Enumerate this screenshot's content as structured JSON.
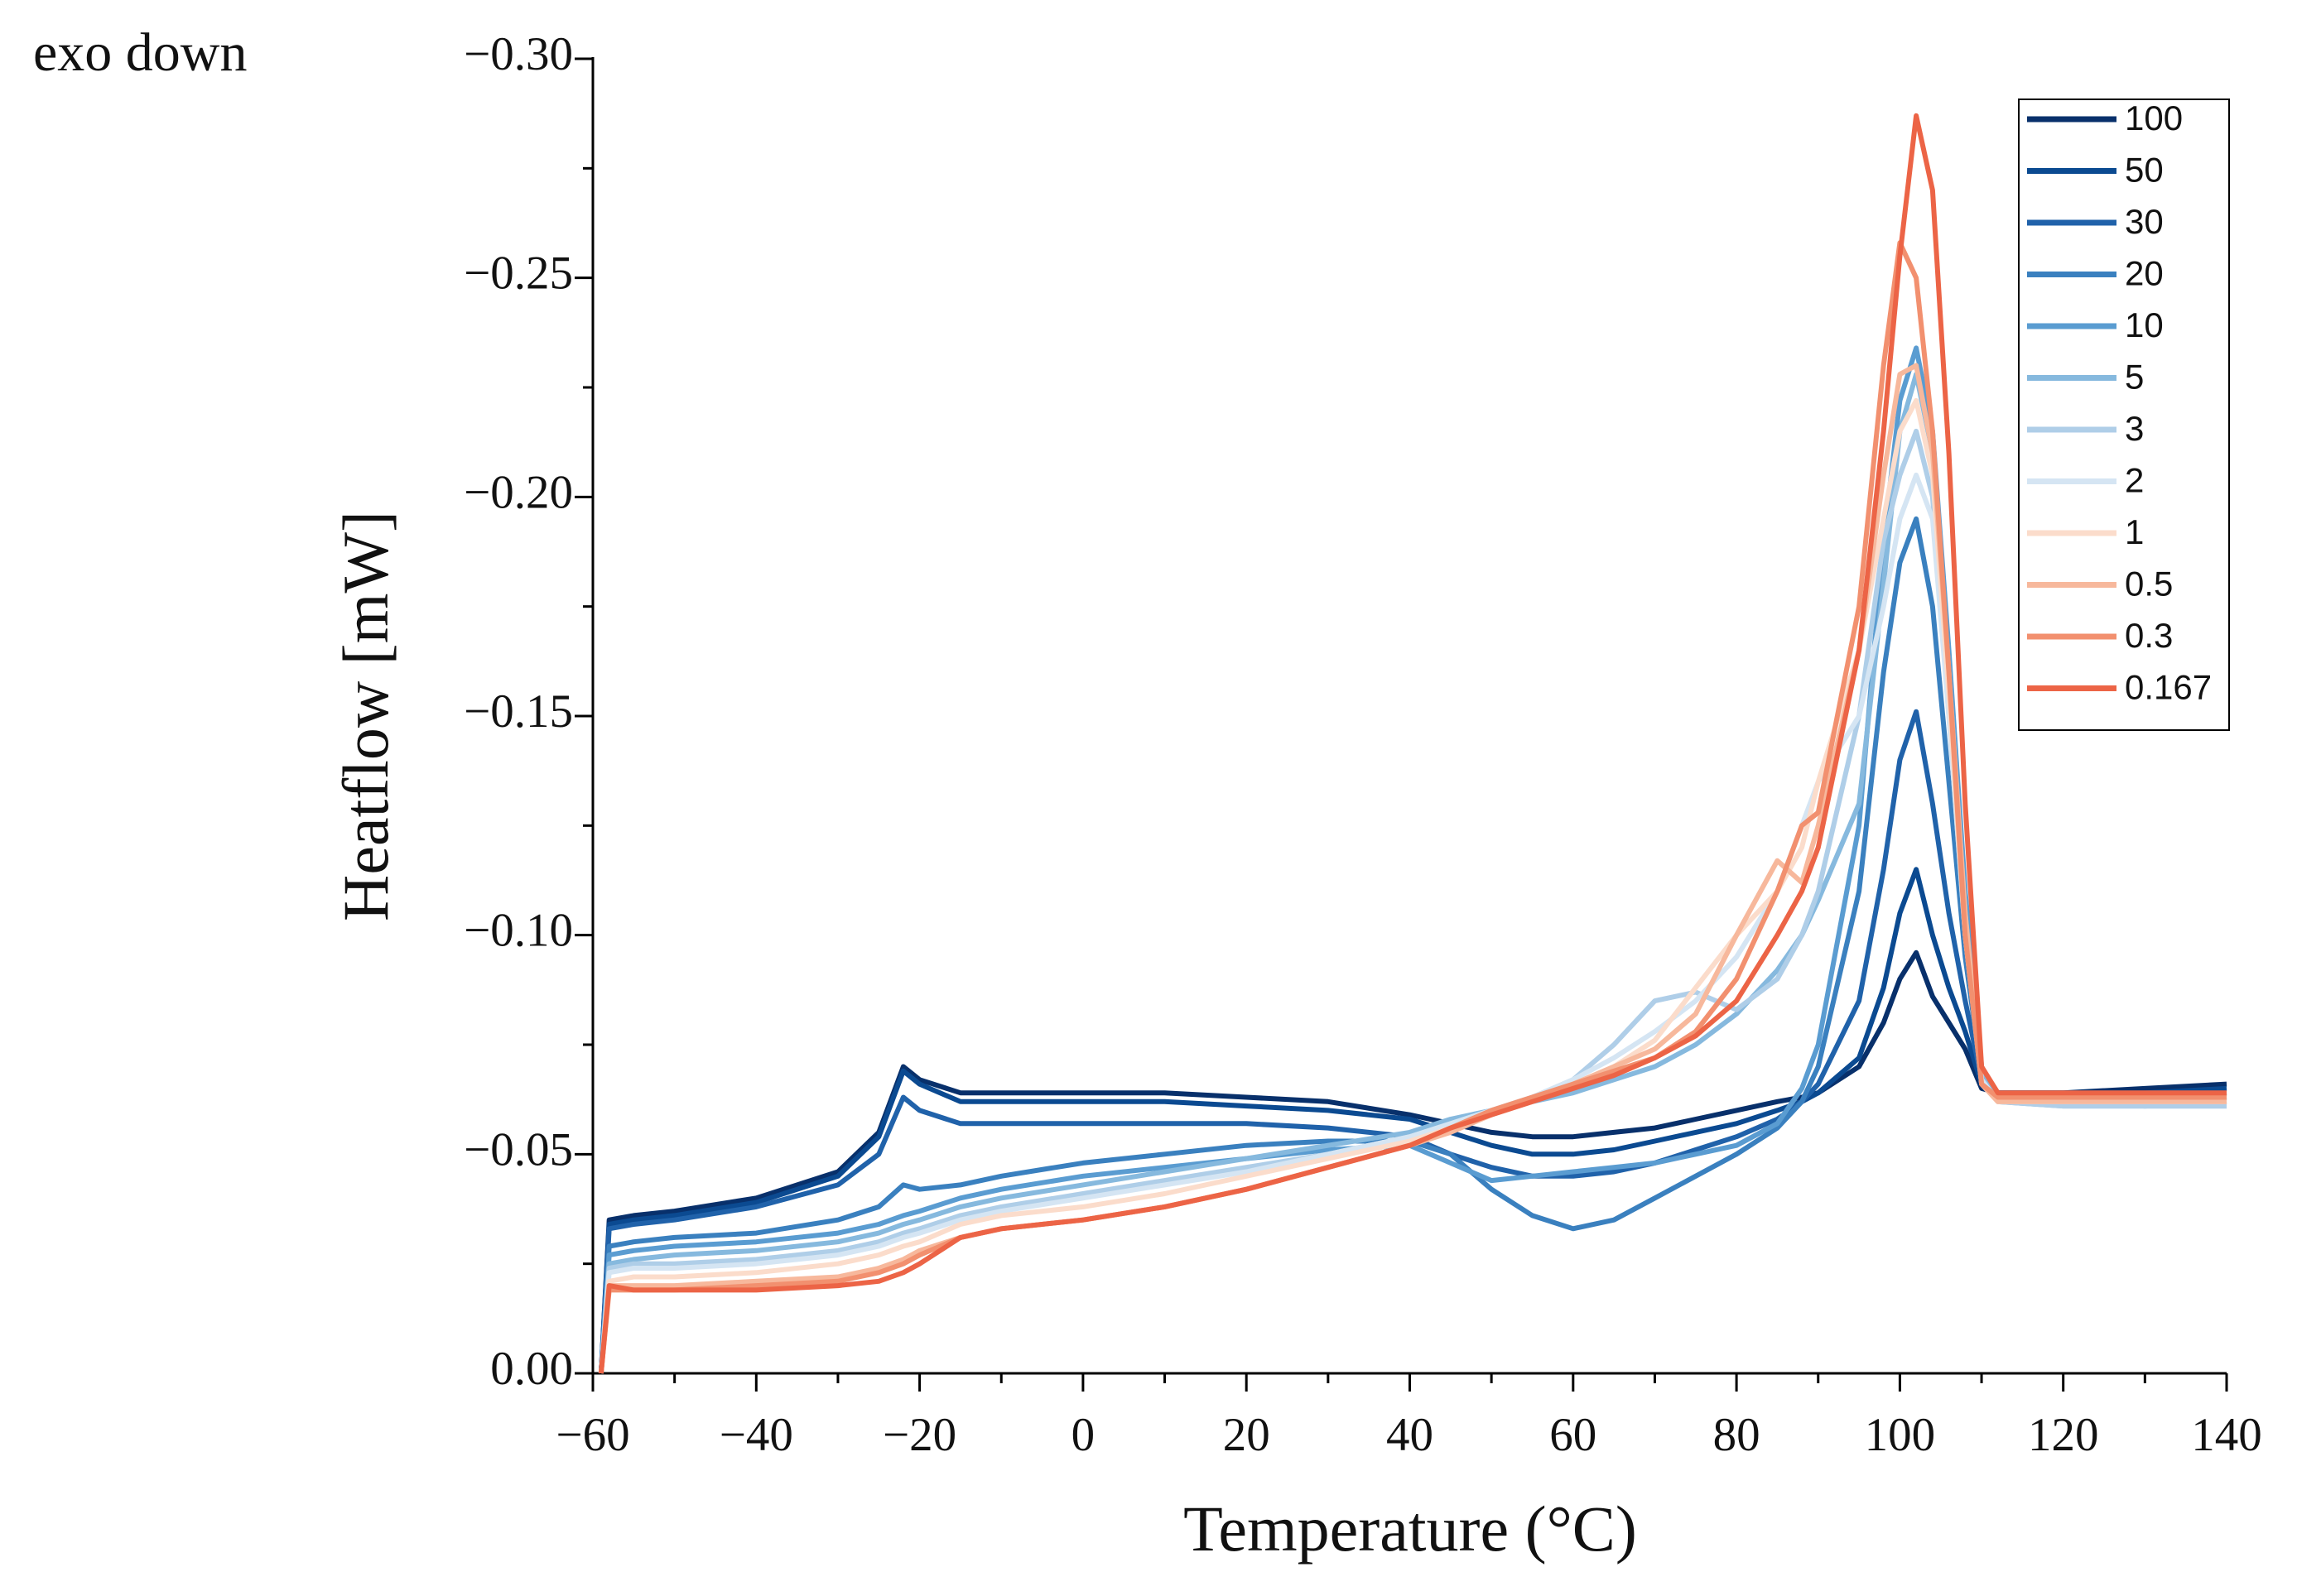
{
  "chart_data": {
    "type": "line",
    "annotation": "exo down",
    "xlabel": "Temperature (°C)",
    "ylabel": "Heatflow [mW]",
    "xlim": [
      -60,
      140
    ],
    "xticks": [
      {
        "value": -60,
        "label": "−60"
      },
      {
        "value": -40,
        "label": "−40"
      },
      {
        "value": -20,
        "label": "−20"
      },
      0,
      20,
      40,
      60,
      80,
      100,
      120,
      140
    ],
    "ylim": [
      0,
      -0.3
    ],
    "yticks": [
      {
        "value": 0,
        "label": "0.00"
      },
      {
        "value": -0.05,
        "label": "−0.05"
      },
      {
        "value": -0.1,
        "label": "−0.10"
      },
      {
        "value": -0.15,
        "label": "−0.15"
      },
      {
        "value": -0.2,
        "label": "−0.20"
      },
      {
        "value": -0.25,
        "label": "−0.25"
      },
      {
        "value": -0.3,
        "label": "−0.30"
      }
    ],
    "legend": "upper right",
    "x": [
      -59,
      -58,
      -55,
      -50,
      -40,
      -30,
      -25,
      -22,
      -20,
      -15,
      -10,
      0,
      10,
      20,
      30,
      40,
      45,
      50,
      55,
      60,
      65,
      70,
      75,
      80,
      85,
      88,
      90,
      95,
      98,
      100,
      102,
      104,
      106,
      108,
      110,
      112,
      120,
      130,
      140
    ],
    "series": [
      {
        "name": "100",
        "color": "#08306b",
        "values": [
          0,
          -0.035,
          -0.036,
          -0.037,
          -0.04,
          -0.046,
          -0.055,
          -0.07,
          -0.067,
          -0.064,
          -0.064,
          -0.064,
          -0.064,
          -0.063,
          -0.062,
          -0.059,
          -0.057,
          -0.055,
          -0.054,
          -0.054,
          -0.055,
          -0.056,
          -0.058,
          -0.06,
          -0.062,
          -0.063,
          -0.064,
          -0.07,
          -0.08,
          -0.09,
          -0.096,
          -0.086,
          -0.08,
          -0.074,
          -0.065,
          -0.064,
          -0.064,
          -0.065,
          -0.066
        ]
      },
      {
        "name": "50",
        "color": "#0b4a91",
        "values": [
          0,
          -0.034,
          -0.035,
          -0.036,
          -0.039,
          -0.045,
          -0.054,
          -0.069,
          -0.066,
          -0.062,
          -0.062,
          -0.062,
          -0.062,
          -0.061,
          -0.06,
          -0.058,
          -0.055,
          -0.052,
          -0.05,
          -0.05,
          -0.051,
          -0.053,
          -0.055,
          -0.057,
          -0.06,
          -0.062,
          -0.064,
          -0.072,
          -0.088,
          -0.105,
          -0.115,
          -0.1,
          -0.088,
          -0.078,
          -0.066,
          -0.064,
          -0.064,
          -0.064,
          -0.065
        ]
      },
      {
        "name": "30",
        "color": "#2062aa",
        "values": [
          0,
          -0.033,
          -0.034,
          -0.035,
          -0.038,
          -0.043,
          -0.05,
          -0.063,
          -0.06,
          -0.057,
          -0.057,
          -0.057,
          -0.057,
          -0.057,
          -0.056,
          -0.054,
          -0.05,
          -0.047,
          -0.045,
          -0.045,
          -0.046,
          -0.048,
          -0.051,
          -0.054,
          -0.058,
          -0.062,
          -0.066,
          -0.085,
          -0.115,
          -0.14,
          -0.151,
          -0.13,
          -0.105,
          -0.085,
          -0.067,
          -0.064,
          -0.063,
          -0.063,
          -0.064
        ]
      },
      {
        "name": "20",
        "color": "#3a80bf",
        "values": [
          0,
          -0.029,
          -0.03,
          -0.031,
          -0.032,
          -0.035,
          -0.038,
          -0.043,
          -0.042,
          -0.043,
          -0.045,
          -0.048,
          -0.05,
          -0.052,
          -0.053,
          -0.053,
          -0.05,
          -0.042,
          -0.036,
          -0.033,
          -0.035,
          -0.04,
          -0.045,
          -0.05,
          -0.056,
          -0.062,
          -0.07,
          -0.11,
          -0.16,
          -0.185,
          -0.195,
          -0.175,
          -0.135,
          -0.095,
          -0.068,
          -0.063,
          -0.062,
          -0.062,
          -0.063
        ]
      },
      {
        "name": "10",
        "color": "#5a9cd1",
        "values": [
          0,
          -0.027,
          -0.028,
          -0.029,
          -0.03,
          -0.032,
          -0.034,
          -0.036,
          -0.037,
          -0.04,
          -0.042,
          -0.045,
          -0.047,
          -0.049,
          -0.051,
          -0.052,
          -0.048,
          -0.044,
          -0.045,
          -0.046,
          -0.047,
          -0.048,
          -0.05,
          -0.052,
          -0.057,
          -0.065,
          -0.075,
          -0.125,
          -0.19,
          -0.222,
          -0.234,
          -0.215,
          -0.165,
          -0.11,
          -0.07,
          -0.063,
          -0.062,
          -0.061,
          -0.062
        ]
      },
      {
        "name": "5",
        "color": "#86b9de",
        "values": [
          0,
          -0.025,
          -0.026,
          -0.027,
          -0.028,
          -0.03,
          -0.032,
          -0.034,
          -0.035,
          -0.038,
          -0.04,
          -0.043,
          -0.046,
          -0.049,
          -0.052,
          -0.055,
          -0.058,
          -0.06,
          -0.062,
          -0.064,
          -0.067,
          -0.07,
          -0.075,
          -0.082,
          -0.092,
          -0.1,
          -0.108,
          -0.13,
          -0.18,
          -0.215,
          -0.228,
          -0.21,
          -0.16,
          -0.105,
          -0.068,
          -0.062,
          -0.061,
          -0.061,
          -0.061
        ]
      },
      {
        "name": "3",
        "color": "#afcee8",
        "values": [
          0,
          -0.024,
          -0.025,
          -0.025,
          -0.026,
          -0.028,
          -0.03,
          -0.032,
          -0.033,
          -0.036,
          -0.038,
          -0.041,
          -0.044,
          -0.047,
          -0.05,
          -0.054,
          -0.057,
          -0.06,
          -0.063,
          -0.067,
          -0.075,
          -0.085,
          -0.087,
          -0.083,
          -0.09,
          -0.1,
          -0.11,
          -0.15,
          -0.19,
          -0.205,
          -0.215,
          -0.2,
          -0.15,
          -0.1,
          -0.067,
          -0.062,
          -0.061,
          -0.061,
          -0.061
        ]
      },
      {
        "name": "2",
        "color": "#d5e5f3",
        "values": [
          0,
          -0.023,
          -0.024,
          -0.024,
          -0.025,
          -0.027,
          -0.029,
          -0.031,
          -0.032,
          -0.035,
          -0.037,
          -0.04,
          -0.043,
          -0.046,
          -0.05,
          -0.054,
          -0.057,
          -0.06,
          -0.063,
          -0.067,
          -0.072,
          -0.078,
          -0.085,
          -0.095,
          -0.11,
          -0.125,
          -0.135,
          -0.15,
          -0.175,
          -0.195,
          -0.205,
          -0.195,
          -0.15,
          -0.1,
          -0.067,
          -0.062,
          -0.062,
          -0.062,
          -0.062
        ]
      },
      {
        "name": "1",
        "color": "#fbdccb",
        "values": [
          0,
          -0.021,
          -0.022,
          -0.022,
          -0.023,
          -0.025,
          -0.027,
          -0.029,
          -0.03,
          -0.034,
          -0.036,
          -0.038,
          -0.041,
          -0.045,
          -0.049,
          -0.053,
          -0.056,
          -0.059,
          -0.062,
          -0.066,
          -0.07,
          -0.076,
          -0.088,
          -0.1,
          -0.11,
          -0.12,
          -0.135,
          -0.165,
          -0.195,
          -0.215,
          -0.222,
          -0.205,
          -0.155,
          -0.1,
          -0.066,
          -0.062,
          -0.062,
          -0.062,
          -0.062
        ]
      },
      {
        "name": "0.5",
        "color": "#f7b89c",
        "values": [
          0,
          -0.02,
          -0.02,
          -0.02,
          -0.021,
          -0.022,
          -0.024,
          -0.026,
          -0.028,
          -0.031,
          -0.033,
          -0.035,
          -0.038,
          -0.042,
          -0.047,
          -0.052,
          -0.055,
          -0.059,
          -0.062,
          -0.066,
          -0.07,
          -0.074,
          -0.082,
          -0.1,
          -0.117,
          -0.112,
          -0.125,
          -0.165,
          -0.205,
          -0.228,
          -0.23,
          -0.21,
          -0.16,
          -0.105,
          -0.066,
          -0.062,
          -0.062,
          -0.062,
          -0.062
        ]
      },
      {
        "name": "0.3",
        "color": "#f2906f",
        "values": [
          0,
          -0.019,
          -0.019,
          -0.019,
          -0.02,
          -0.021,
          -0.023,
          -0.025,
          -0.027,
          -0.031,
          -0.033,
          -0.035,
          -0.038,
          -0.042,
          -0.047,
          -0.052,
          -0.056,
          -0.06,
          -0.063,
          -0.066,
          -0.069,
          -0.072,
          -0.078,
          -0.09,
          -0.11,
          -0.125,
          -0.128,
          -0.175,
          -0.23,
          -0.258,
          -0.25,
          -0.215,
          -0.16,
          -0.1,
          -0.066,
          -0.063,
          -0.063,
          -0.063,
          -0.063
        ]
      },
      {
        "name": "0.167",
        "color": "#ec6446",
        "values": [
          0,
          -0.02,
          -0.019,
          -0.019,
          -0.019,
          -0.02,
          -0.021,
          -0.023,
          -0.025,
          -0.031,
          -0.033,
          -0.035,
          -0.038,
          -0.042,
          -0.047,
          -0.052,
          -0.056,
          -0.059,
          -0.062,
          -0.065,
          -0.068,
          -0.072,
          -0.077,
          -0.085,
          -0.1,
          -0.11,
          -0.12,
          -0.165,
          -0.215,
          -0.255,
          -0.287,
          -0.27,
          -0.21,
          -0.13,
          -0.07,
          -0.064,
          -0.064,
          -0.064,
          -0.064
        ]
      }
    ]
  }
}
